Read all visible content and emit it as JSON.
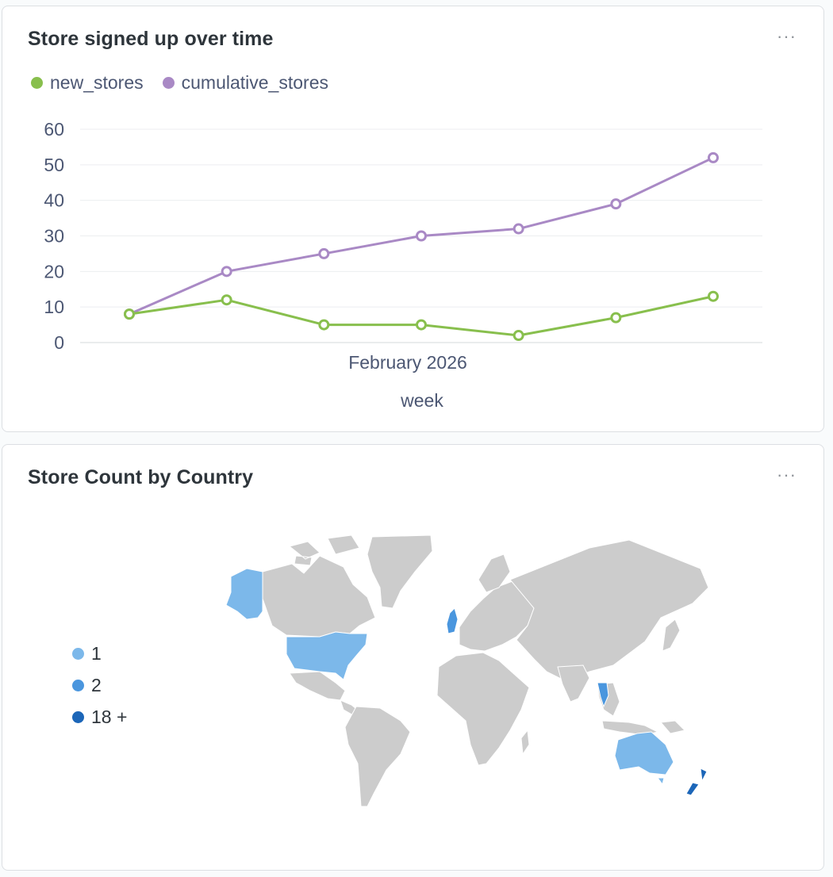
{
  "cards": {
    "signups": {
      "title": "Store signed up over time",
      "more_label": "···"
    },
    "country": {
      "title": "Store Count by Country",
      "more_label": "···"
    }
  },
  "chart_data": {
    "type": "line",
    "xlabel": "week",
    "x_tick_label": "February 2026",
    "ylim": [
      0,
      60
    ],
    "y_ticks": [
      0,
      10,
      20,
      30,
      40,
      50,
      60
    ],
    "grid": true,
    "legend_position": "top-left",
    "series": [
      {
        "name": "new_stores",
        "color": "#88bf4d",
        "values": [
          8,
          12,
          5,
          5,
          2,
          7,
          13
        ]
      },
      {
        "name": "cumulative_stores",
        "color": "#a989c5",
        "values": [
          8,
          20,
          25,
          30,
          32,
          39,
          52
        ]
      }
    ]
  },
  "map": {
    "legend": [
      {
        "label": "1",
        "color": "#7cb8ea"
      },
      {
        "label": "2",
        "color": "#4a96de"
      },
      {
        "label": "18 +",
        "color": "#1c66b8"
      }
    ],
    "land_color": "#cccccc"
  }
}
